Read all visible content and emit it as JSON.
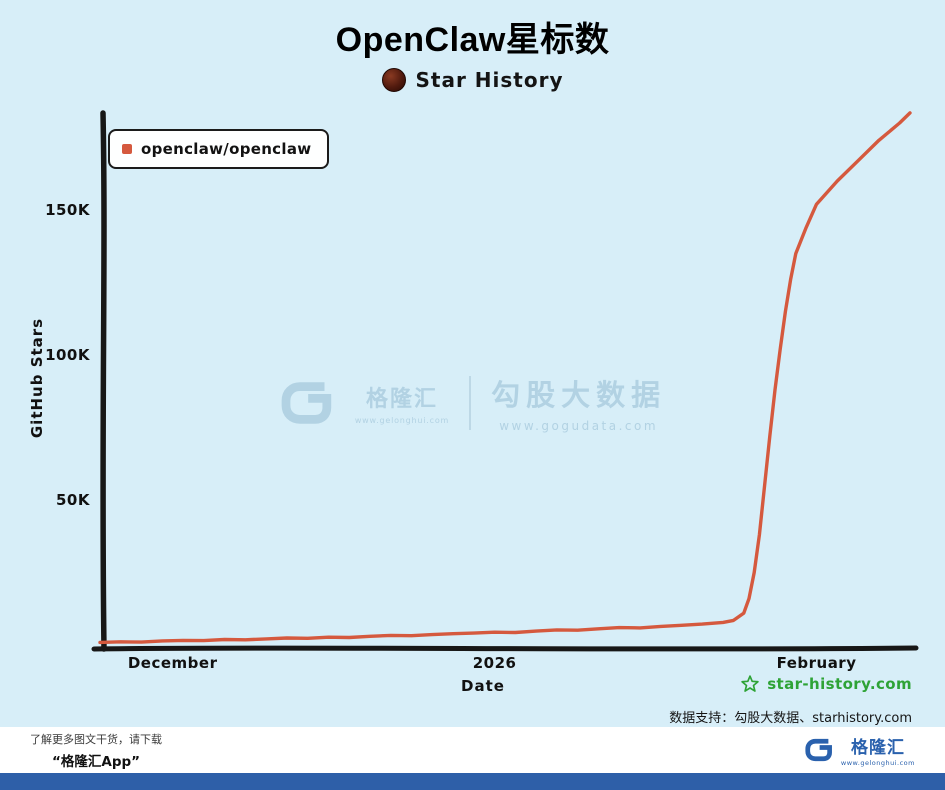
{
  "page": {
    "bg_color": "#d7eef8",
    "bottom_bar_color": "#2e5fa8"
  },
  "header": {
    "title": "OpenClaw星标数",
    "brand": "Star History"
  },
  "chart_data": {
    "type": "line",
    "title": "OpenClaw星标数",
    "xlabel": "Date",
    "ylabel": "GitHub Stars",
    "legend_position": "top-left",
    "grid": false,
    "x_axis": {
      "range_days": [
        0,
        78
      ],
      "ticks": [
        {
          "label": "December",
          "day": 7
        },
        {
          "label": "2026",
          "day": 38
        },
        {
          "label": "February",
          "day": 69
        }
      ]
    },
    "y_axis": {
      "range": [
        0,
        185000
      ],
      "ticks": [
        {
          "label": "50K",
          "value": 50000
        },
        {
          "label": "100K",
          "value": 100000
        },
        {
          "label": "150K",
          "value": 150000
        }
      ]
    },
    "series": [
      {
        "name": "openclaw/openclaw",
        "color": "#d5593e",
        "points": [
          [
            0,
            900
          ],
          [
            2,
            1100
          ],
          [
            4,
            1000
          ],
          [
            6,
            1400
          ],
          [
            8,
            1600
          ],
          [
            10,
            1500
          ],
          [
            12,
            1900
          ],
          [
            14,
            1800
          ],
          [
            16,
            2100
          ],
          [
            18,
            2400
          ],
          [
            20,
            2300
          ],
          [
            22,
            2700
          ],
          [
            24,
            2600
          ],
          [
            26,
            3000
          ],
          [
            28,
            3300
          ],
          [
            30,
            3200
          ],
          [
            32,
            3600
          ],
          [
            34,
            3900
          ],
          [
            36,
            4100
          ],
          [
            38,
            4400
          ],
          [
            40,
            4300
          ],
          [
            42,
            4800
          ],
          [
            44,
            5200
          ],
          [
            46,
            5100
          ],
          [
            48,
            5600
          ],
          [
            50,
            6000
          ],
          [
            52,
            5900
          ],
          [
            54,
            6400
          ],
          [
            56,
            6800
          ],
          [
            58,
            7200
          ],
          [
            60,
            7800
          ],
          [
            61,
            8500
          ],
          [
            62,
            11000
          ],
          [
            62.5,
            16000
          ],
          [
            63,
            25000
          ],
          [
            63.5,
            38000
          ],
          [
            64,
            55000
          ],
          [
            64.5,
            72000
          ],
          [
            65,
            88000
          ],
          [
            65.5,
            102000
          ],
          [
            66,
            115000
          ],
          [
            66.5,
            126000
          ],
          [
            67,
            135000
          ],
          [
            68,
            144000
          ],
          [
            69,
            152000
          ],
          [
            71,
            160000
          ],
          [
            73,
            167000
          ],
          [
            75,
            174000
          ],
          [
            77,
            180000
          ],
          [
            78,
            183500
          ]
        ]
      }
    ]
  },
  "watermark": {
    "brand_cn": "格隆汇",
    "brand_url": "www.gelonghui.com",
    "partner": "勾股大数据",
    "partner_url": "www.gogudata.com"
  },
  "credits": {
    "star_history_site": "star-history.com",
    "data_support": "数据支持：勾股大数据、starhistory.com"
  },
  "footer": {
    "promo_line1": "了解更多图文干货，请下载",
    "promo_line2": "“格隆汇App”",
    "logo_text": "格隆汇",
    "logo_url": "www.gelonghui.com"
  },
  "icons": {
    "star_history_logo": "dark-red-circle-badge",
    "star_outline": "☆",
    "gelonghui_g": "G"
  }
}
